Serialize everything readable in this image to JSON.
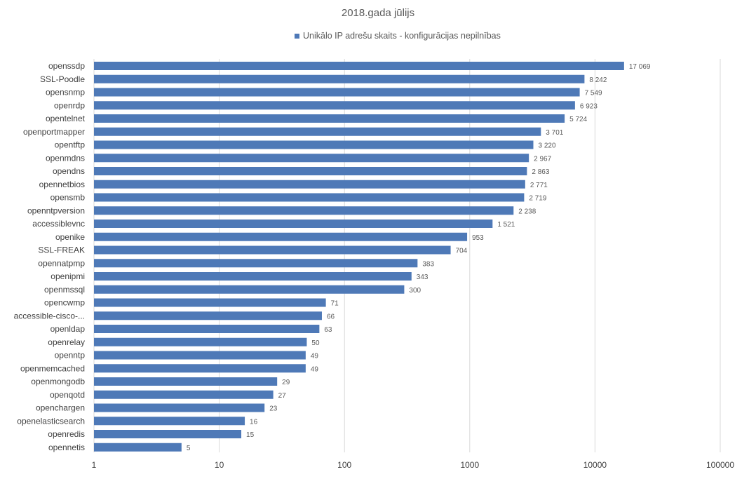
{
  "colors": {
    "bar": "#4e79b7",
    "grid": "#d9d9d9"
  },
  "chart_data": {
    "type": "bar",
    "orientation": "horizontal",
    "title": "2018.gada jūlijs",
    "legend_position": "top",
    "x_scale": "log",
    "xlim": [
      1,
      100000
    ],
    "x_ticks": [
      "1",
      "10",
      "100",
      "1000",
      "10000",
      "100000"
    ],
    "grid": true,
    "series": [
      {
        "name": "Unikālo IP adrešu skaits  -  konfigurācijas nepilnības",
        "color": "#4e79b7",
        "values": [
          17069,
          8242,
          7549,
          6923,
          5724,
          3701,
          3220,
          2967,
          2863,
          2771,
          2719,
          2238,
          1521,
          953,
          704,
          383,
          343,
          300,
          71,
          66,
          63,
          50,
          49,
          49,
          29,
          27,
          23,
          16,
          15,
          5
        ],
        "value_labels": [
          "17 069",
          "8 242",
          "7 549",
          "6 923",
          "5 724",
          "3 701",
          "3 220",
          "2 967",
          "2 863",
          "2 771",
          "2 719",
          "2 238",
          "1 521",
          "953",
          "704",
          "383",
          "343",
          "300",
          "71",
          "66",
          "63",
          "50",
          "49",
          "49",
          "29",
          "27",
          "23",
          "16",
          "15",
          "5"
        ]
      }
    ],
    "categories": [
      "openssdp",
      "SSL-Poodle",
      "opensnmp",
      "openrdp",
      "opentelnet",
      "openportmapper",
      "opentftp",
      "openmdns",
      "opendns",
      "opennetbios",
      "opensmb",
      "openntpversion",
      "accessiblevnc",
      "openike",
      "SSL-FREAK",
      "opennatpmp",
      "openipmi",
      "openmssql",
      "opencwmp",
      "accessible-cisco-...",
      "openldap",
      "openrelay",
      "openntp",
      "openmemcached",
      "openmongodb",
      "openqotd",
      "openchargen",
      "openelasticsearch",
      "openredis",
      "opennetis"
    ]
  }
}
